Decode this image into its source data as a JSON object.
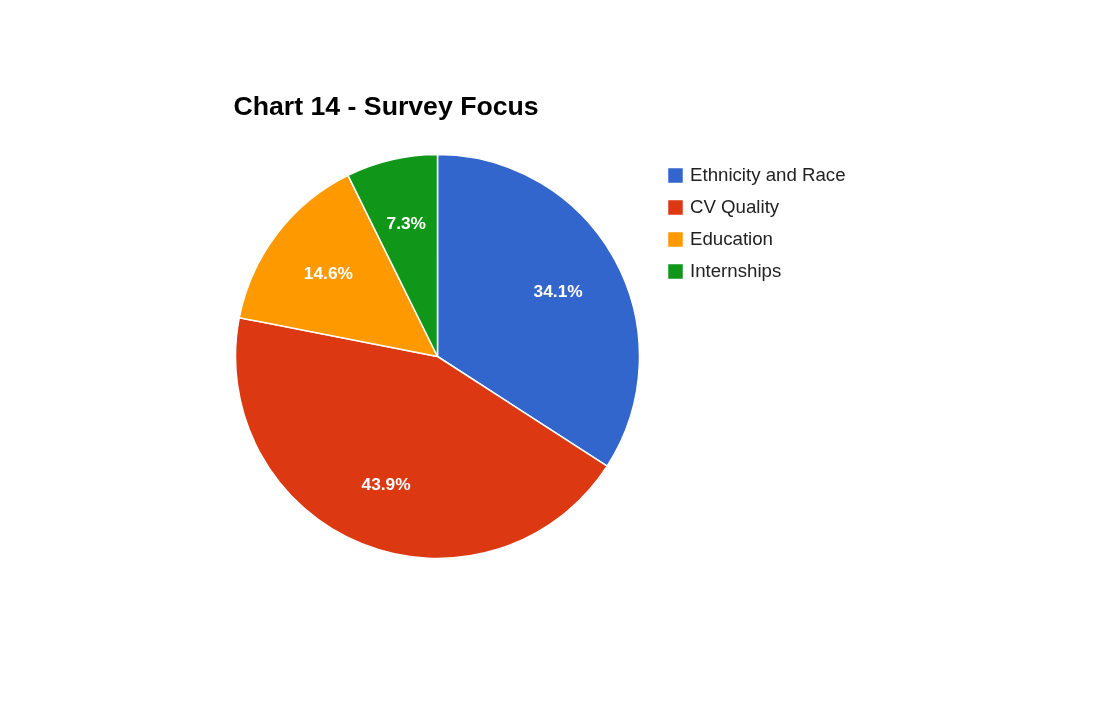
{
  "chart_data": {
    "type": "pie",
    "title": "Chart 14 - Survey Focus",
    "categories": [
      "Ethnicity and Race",
      "CV Quality",
      "Education",
      "Internships"
    ],
    "values": [
      34.1,
      43.9,
      14.6,
      7.3
    ],
    "colors": [
      "#3366cc",
      "#dc3912",
      "#ff9900",
      "#109618"
    ],
    "value_labels": [
      "34.1%",
      "43.9%",
      "14.6%",
      "7.3%"
    ],
    "legend": "top right"
  }
}
